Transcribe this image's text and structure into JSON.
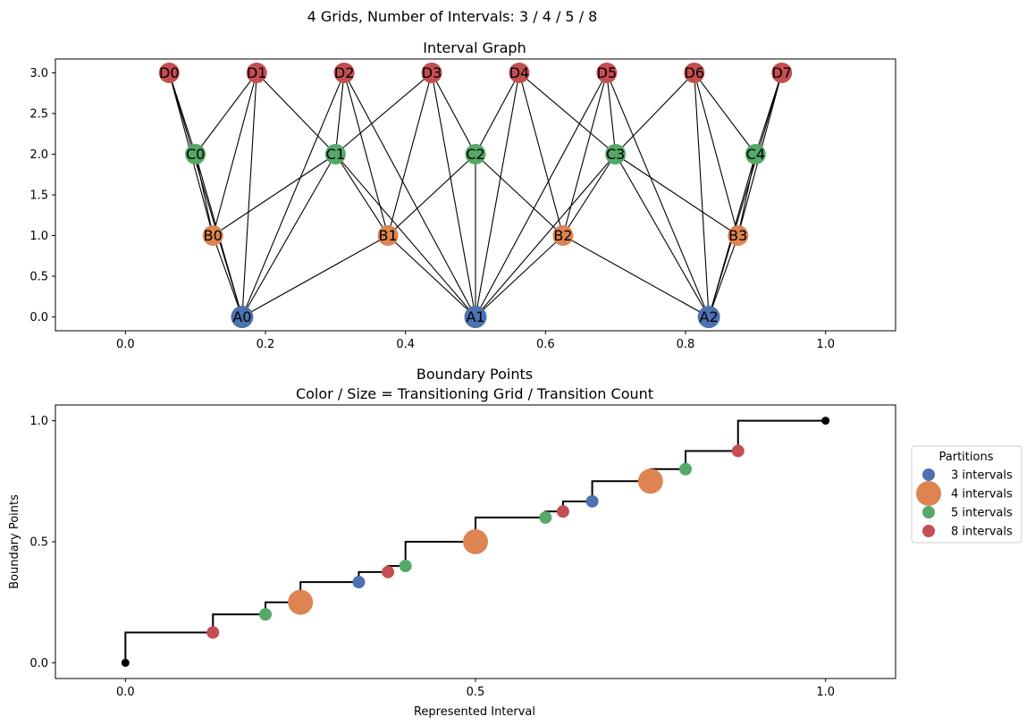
{
  "figure": {
    "suptitle": "4 Grids, Number of Intervals: 3 / 4 / 5 / 8"
  },
  "palette": {
    "A": "#4c72b0",
    "B": "#dd8452",
    "C": "#55a868",
    "D": "#c44e52",
    "endpoint": "#000000"
  },
  "chart_data": [
    {
      "type": "network",
      "title": "Interval Graph",
      "xlim": [
        -0.1,
        1.1
      ],
      "ylim": [
        -0.17,
        3.17
      ],
      "xticks": [
        0.0,
        0.2,
        0.4,
        0.6,
        0.8,
        1.0
      ],
      "xtick_labels": [
        "0.0",
        "0.2",
        "0.4",
        "0.6",
        "0.8",
        "1.0"
      ],
      "yticks": [
        0.0,
        0.5,
        1.0,
        1.5,
        2.0,
        2.5,
        3.0
      ],
      "ytick_labels": [
        "0.0",
        "0.5",
        "1.0",
        "1.5",
        "2.0",
        "2.5",
        "3.0"
      ],
      "nodes": [
        {
          "id": "A0",
          "x": 0.1667,
          "y": 0,
          "group": "A"
        },
        {
          "id": "A1",
          "x": 0.5,
          "y": 0,
          "group": "A"
        },
        {
          "id": "A2",
          "x": 0.8333,
          "y": 0,
          "group": "A"
        },
        {
          "id": "B0",
          "x": 0.125,
          "y": 1,
          "group": "B"
        },
        {
          "id": "B1",
          "x": 0.375,
          "y": 1,
          "group": "B"
        },
        {
          "id": "B2",
          "x": 0.625,
          "y": 1,
          "group": "B"
        },
        {
          "id": "B3",
          "x": 0.875,
          "y": 1,
          "group": "B"
        },
        {
          "id": "C0",
          "x": 0.1,
          "y": 2,
          "group": "C"
        },
        {
          "id": "C1",
          "x": 0.3,
          "y": 2,
          "group": "C"
        },
        {
          "id": "C2",
          "x": 0.5,
          "y": 2,
          "group": "C"
        },
        {
          "id": "C3",
          "x": 0.7,
          "y": 2,
          "group": "C"
        },
        {
          "id": "C4",
          "x": 0.9,
          "y": 2,
          "group": "C"
        },
        {
          "id": "D0",
          "x": 0.0625,
          "y": 3,
          "group": "D"
        },
        {
          "id": "D1",
          "x": 0.1875,
          "y": 3,
          "group": "D"
        },
        {
          "id": "D2",
          "x": 0.3125,
          "y": 3,
          "group": "D"
        },
        {
          "id": "D3",
          "x": 0.4375,
          "y": 3,
          "group": "D"
        },
        {
          "id": "D4",
          "x": 0.5625,
          "y": 3,
          "group": "D"
        },
        {
          "id": "D5",
          "x": 0.6875,
          "y": 3,
          "group": "D"
        },
        {
          "id": "D6",
          "x": 0.8125,
          "y": 3,
          "group": "D"
        },
        {
          "id": "D7",
          "x": 0.9375,
          "y": 3,
          "group": "D"
        }
      ],
      "edges": [
        [
          "A0",
          "B0"
        ],
        [
          "A0",
          "B1"
        ],
        [
          "A0",
          "C0"
        ],
        [
          "A0",
          "C1"
        ],
        [
          "A0",
          "D0"
        ],
        [
          "A0",
          "D1"
        ],
        [
          "A0",
          "D2"
        ],
        [
          "A1",
          "B1"
        ],
        [
          "A1",
          "B2"
        ],
        [
          "A1",
          "C1"
        ],
        [
          "A1",
          "C2"
        ],
        [
          "A1",
          "C3"
        ],
        [
          "A1",
          "D2"
        ],
        [
          "A1",
          "D3"
        ],
        [
          "A1",
          "D4"
        ],
        [
          "A1",
          "D5"
        ],
        [
          "A2",
          "B2"
        ],
        [
          "A2",
          "B3"
        ],
        [
          "A2",
          "C3"
        ],
        [
          "A2",
          "C4"
        ],
        [
          "A2",
          "D5"
        ],
        [
          "A2",
          "D6"
        ],
        [
          "A2",
          "D7"
        ],
        [
          "B0",
          "C0"
        ],
        [
          "B0",
          "C1"
        ],
        [
          "B0",
          "D0"
        ],
        [
          "B0",
          "D1"
        ],
        [
          "B1",
          "C1"
        ],
        [
          "B1",
          "C2"
        ],
        [
          "B1",
          "D2"
        ],
        [
          "B1",
          "D3"
        ],
        [
          "B2",
          "C2"
        ],
        [
          "B2",
          "C3"
        ],
        [
          "B2",
          "D4"
        ],
        [
          "B2",
          "D5"
        ],
        [
          "B3",
          "C3"
        ],
        [
          "B3",
          "C4"
        ],
        [
          "B3",
          "D6"
        ],
        [
          "B3",
          "D7"
        ],
        [
          "C0",
          "D0"
        ],
        [
          "C0",
          "D1"
        ],
        [
          "C1",
          "D1"
        ],
        [
          "C1",
          "D2"
        ],
        [
          "C1",
          "D3"
        ],
        [
          "C2",
          "D3"
        ],
        [
          "C2",
          "D4"
        ],
        [
          "C3",
          "D4"
        ],
        [
          "C3",
          "D5"
        ],
        [
          "C3",
          "D6"
        ],
        [
          "C4",
          "D6"
        ],
        [
          "C4",
          "D7"
        ]
      ]
    },
    {
      "type": "step+scatter",
      "title_lines": [
        "Boundary Points",
        "Color / Size = Transitioning Grid / Transition Count"
      ],
      "xlabel": "Represented Interval",
      "ylabel": "Boundary Points",
      "xlim": [
        -0.1,
        1.1
      ],
      "ylim": [
        -0.065,
        1.065
      ],
      "xticks": [
        0.0,
        0.5,
        1.0
      ],
      "xtick_labels": [
        "0.0",
        "0.5",
        "1.0"
      ],
      "yticks": [
        0.0,
        0.5,
        1.0
      ],
      "ytick_labels": [
        "0.0",
        "0.5",
        "1.0"
      ],
      "step": {
        "x": [
          0,
          0.125,
          0.2,
          0.25,
          0.3333,
          0.375,
          0.4,
          0.5,
          0.6,
          0.625,
          0.6667,
          0.75,
          0.8,
          0.875,
          1.0
        ],
        "y": [
          0,
          0.125,
          0.2,
          0.25,
          0.3333,
          0.375,
          0.4,
          0.5,
          0.6,
          0.625,
          0.6667,
          0.75,
          0.8,
          0.875,
          1.0
        ]
      },
      "endpoints": [
        {
          "x": 0,
          "y": 0
        },
        {
          "x": 1.0,
          "y": 1.0
        }
      ],
      "points": [
        {
          "x": 0.125,
          "y": 0.125,
          "grid": "D",
          "count": 1
        },
        {
          "x": 0.2,
          "y": 0.2,
          "grid": "C",
          "count": 1
        },
        {
          "x": 0.25,
          "y": 0.25,
          "grid": "B",
          "count": 2
        },
        {
          "x": 0.3333,
          "y": 0.3333,
          "grid": "A",
          "count": 1
        },
        {
          "x": 0.375,
          "y": 0.375,
          "grid": "D",
          "count": 1
        },
        {
          "x": 0.4,
          "y": 0.4,
          "grid": "C",
          "count": 1
        },
        {
          "x": 0.5,
          "y": 0.5,
          "grid": "B",
          "count": 2
        },
        {
          "x": 0.6,
          "y": 0.6,
          "grid": "C",
          "count": 1
        },
        {
          "x": 0.625,
          "y": 0.625,
          "grid": "D",
          "count": 1
        },
        {
          "x": 0.6667,
          "y": 0.6667,
          "grid": "A",
          "count": 1
        },
        {
          "x": 0.75,
          "y": 0.75,
          "grid": "B",
          "count": 2
        },
        {
          "x": 0.8,
          "y": 0.8,
          "grid": "C",
          "count": 1
        },
        {
          "x": 0.875,
          "y": 0.875,
          "grid": "D",
          "count": 1
        }
      ],
      "legend": {
        "title": "Partitions",
        "placement": "right",
        "entries": [
          {
            "label": "3 intervals",
            "grid": "A",
            "count": 1
          },
          {
            "label": "4 intervals",
            "grid": "B",
            "count": 2
          },
          {
            "label": "5 intervals",
            "grid": "C",
            "count": 1
          },
          {
            "label": "8 intervals",
            "grid": "D",
            "count": 1
          }
        ]
      }
    }
  ]
}
